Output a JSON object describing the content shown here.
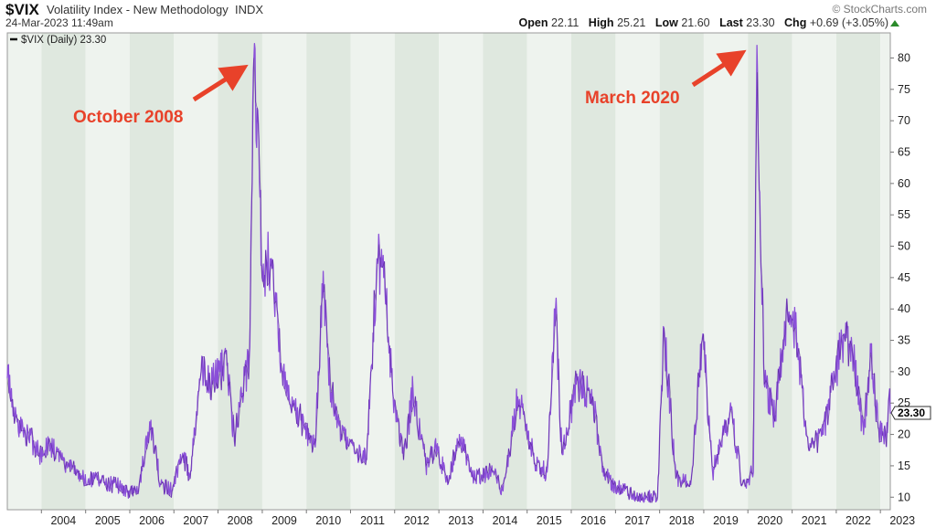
{
  "header": {
    "symbol": "$VIX",
    "name": "Volatility Index - New Methodology",
    "exchange": "INDX",
    "timestamp": "24-Mar-2023 11:49am",
    "brand": "© StockCharts.com",
    "open_label": "Open",
    "open": "22.11",
    "high_label": "High",
    "high": "25.21",
    "low_label": "Low",
    "low": "21.60",
    "last_label": "Last",
    "last": "23.30",
    "chg_label": "Chg",
    "chg": "+0.69 (+3.05%)"
  },
  "legend": {
    "label": "$VIX (Daily) 23.30"
  },
  "last_value_label": "23.30",
  "annotations": [
    {
      "text": "October 2008"
    },
    {
      "text": "March 2020"
    }
  ],
  "colors": {
    "line": "#8a4fd8",
    "line_dark": "#3a1070",
    "band_light": "#eef3ee",
    "band_dark": "#dfe8df",
    "annotation": "#e8422a"
  },
  "chart_data": {
    "type": "line",
    "title": "$VIX Volatility Index - New Methodology",
    "series": [
      {
        "name": "$VIX (Daily)",
        "points": [
          [
            "2003-03-25",
            29
          ],
          [
            "2003-06-15",
            22
          ],
          [
            "2003-09-15",
            20
          ],
          [
            "2003-12-15",
            17
          ],
          [
            "2004-03-15",
            18
          ],
          [
            "2004-06-15",
            16
          ],
          [
            "2004-09-15",
            15
          ],
          [
            "2004-12-15",
            13
          ],
          [
            "2005-03-15",
            13
          ],
          [
            "2005-06-15",
            12
          ],
          [
            "2005-09-15",
            12
          ],
          [
            "2005-12-15",
            11
          ],
          [
            "2006-03-15",
            11
          ],
          [
            "2006-06-15",
            22
          ],
          [
            "2006-09-15",
            12
          ],
          [
            "2006-12-15",
            11
          ],
          [
            "2007-03-15",
            17
          ],
          [
            "2007-05-15",
            13
          ],
          [
            "2007-08-15",
            30
          ],
          [
            "2007-11-15",
            28
          ],
          [
            "2008-01-15",
            30
          ],
          [
            "2008-03-15",
            31
          ],
          [
            "2008-05-15",
            19
          ],
          [
            "2008-07-15",
            26
          ],
          [
            "2008-09-15",
            32
          ],
          [
            "2008-10-24",
            80
          ],
          [
            "2008-11-20",
            72
          ],
          [
            "2008-12-31",
            45
          ],
          [
            "2009-03-09",
            48
          ],
          [
            "2009-06-15",
            30
          ],
          [
            "2009-09-15",
            25
          ],
          [
            "2009-12-15",
            21
          ],
          [
            "2010-03-15",
            18
          ],
          [
            "2010-05-20",
            46
          ],
          [
            "2010-07-15",
            28
          ],
          [
            "2010-10-15",
            20
          ],
          [
            "2011-02-15",
            17
          ],
          [
            "2011-05-15",
            16
          ],
          [
            "2011-08-08",
            48
          ],
          [
            "2011-10-03",
            45
          ],
          [
            "2011-12-15",
            27
          ],
          [
            "2012-03-15",
            16
          ],
          [
            "2012-06-01",
            27
          ],
          [
            "2012-09-15",
            15
          ],
          [
            "2012-12-15",
            18
          ],
          [
            "2013-03-15",
            12
          ],
          [
            "2013-06-20",
            20
          ],
          [
            "2013-09-15",
            14
          ],
          [
            "2013-12-15",
            13
          ],
          [
            "2014-03-15",
            15
          ],
          [
            "2014-06-15",
            11
          ],
          [
            "2014-10-15",
            26
          ],
          [
            "2014-12-15",
            22
          ],
          [
            "2015-03-15",
            15
          ],
          [
            "2015-06-15",
            14
          ],
          [
            "2015-08-24",
            40
          ],
          [
            "2015-10-15",
            17
          ],
          [
            "2016-02-11",
            28
          ],
          [
            "2016-06-27",
            26
          ],
          [
            "2016-09-15",
            14
          ],
          [
            "2016-12-15",
            12
          ],
          [
            "2017-03-15",
            11
          ],
          [
            "2017-06-15",
            10
          ],
          [
            "2017-09-15",
            10
          ],
          [
            "2017-12-15",
            10
          ],
          [
            "2018-02-05",
            37
          ],
          [
            "2018-05-15",
            13
          ],
          [
            "2018-09-15",
            12
          ],
          [
            "2018-12-24",
            36
          ],
          [
            "2019-03-15",
            14
          ],
          [
            "2019-08-15",
            24
          ],
          [
            "2019-11-15",
            12
          ],
          [
            "2020-02-15",
            14
          ],
          [
            "2020-03-16",
            82
          ],
          [
            "2020-05-15",
            28
          ],
          [
            "2020-08-15",
            23
          ],
          [
            "2020-10-30",
            38
          ],
          [
            "2021-01-27",
            37
          ],
          [
            "2021-05-15",
            18
          ],
          [
            "2021-09-15",
            20
          ],
          [
            "2021-12-01",
            28
          ],
          [
            "2022-03-07",
            36
          ],
          [
            "2022-05-15",
            33
          ],
          [
            "2022-08-15",
            20
          ],
          [
            "2022-10-15",
            33
          ],
          [
            "2022-12-15",
            21
          ],
          [
            "2023-02-15",
            19
          ],
          [
            "2023-03-13",
            26
          ],
          [
            "2023-03-24",
            23.3
          ]
        ]
      }
    ],
    "x_ticks": [
      "2004",
      "2005",
      "2006",
      "2007",
      "2008",
      "2009",
      "2010",
      "2011",
      "2012",
      "2013",
      "2014",
      "2015",
      "2016",
      "2017",
      "2018",
      "2019",
      "2020",
      "2021",
      "2022",
      "2023"
    ],
    "y_ticks": [
      10,
      15,
      20,
      25,
      30,
      35,
      40,
      45,
      50,
      55,
      60,
      65,
      70,
      75,
      80
    ],
    "xlim": [
      "2003-03-25",
      "2023-03-24"
    ],
    "ylim": [
      8,
      84
    ],
    "y_axis_side": "right",
    "grid": false,
    "legend_position": "top-left"
  }
}
